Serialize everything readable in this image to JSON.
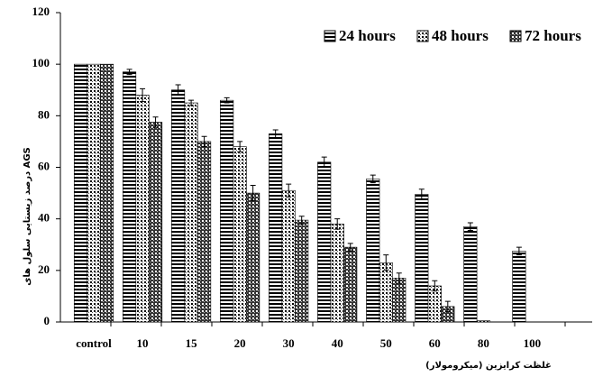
{
  "chart_data": {
    "type": "bar",
    "y_label": "درصد زیستایی سلول های AGS",
    "x_label": "غلظت کرایزین (میکرومولار)",
    "categories": [
      "control",
      "10",
      "15",
      "20",
      "30",
      "40",
      "50",
      "60",
      "80",
      "100"
    ],
    "series": [
      {
        "name": "24 hours",
        "color": "#000000",
        "pattern": "stripes",
        "values": [
          100,
          97,
          90,
          86,
          73,
          62,
          55.5,
          49.5,
          37,
          27.5
        ],
        "errors": [
          0,
          1,
          2,
          1,
          1.5,
          2,
          1.5,
          2,
          1.5,
          1.5
        ]
      },
      {
        "name": "48 hours",
        "color": "#000000",
        "pattern": "dots",
        "values": [
          100,
          88,
          85,
          68,
          51,
          38,
          23,
          14,
          0.5,
          0
        ],
        "errors": [
          0,
          2.5,
          1,
          2,
          2.5,
          2,
          3,
          2,
          0,
          0
        ]
      },
      {
        "name": "72 hours",
        "color": "#000000",
        "pattern": "checks",
        "values": [
          100,
          77.5,
          70,
          50,
          39.5,
          29,
          17,
          6,
          0,
          0
        ],
        "errors": [
          0,
          2,
          2,
          3,
          1.5,
          1.5,
          2,
          2,
          0,
          0
        ]
      }
    ],
    "ylim": [
      0,
      120
    ],
    "yticks": [
      0,
      20,
      40,
      60,
      80,
      100,
      120
    ],
    "grid": false,
    "legend": "upper right"
  }
}
